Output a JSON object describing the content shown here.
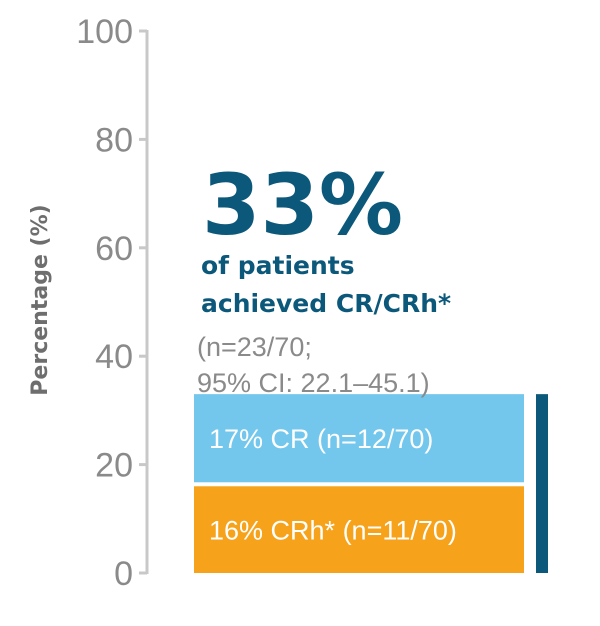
{
  "chart_data": {
    "type": "bar",
    "stacked": true,
    "ylabel": "Percentage (%)",
    "ylim": [
      0,
      100
    ],
    "yticks": [
      "0",
      "20",
      "40",
      "60",
      "80",
      "100"
    ],
    "ytick_values": [
      0,
      20,
      40,
      60,
      80,
      100
    ],
    "grid": false,
    "series": [
      {
        "label": "16% CRh* (n=11/70)",
        "value": 16,
        "color": "#f7a21b"
      },
      {
        "label": "17% CR (n=12/70)",
        "value": 17,
        "color": "#74c7ec"
      }
    ],
    "total_bracket_value": 33,
    "bracket_color": "#0c587a",
    "annotation": {
      "big_value": "33%",
      "line1": "of patients",
      "line2": "achieved CR/CRh*",
      "note_line1": "(n=23/70;",
      "note_line2": "95% CI: 22.1–45.1)"
    }
  }
}
